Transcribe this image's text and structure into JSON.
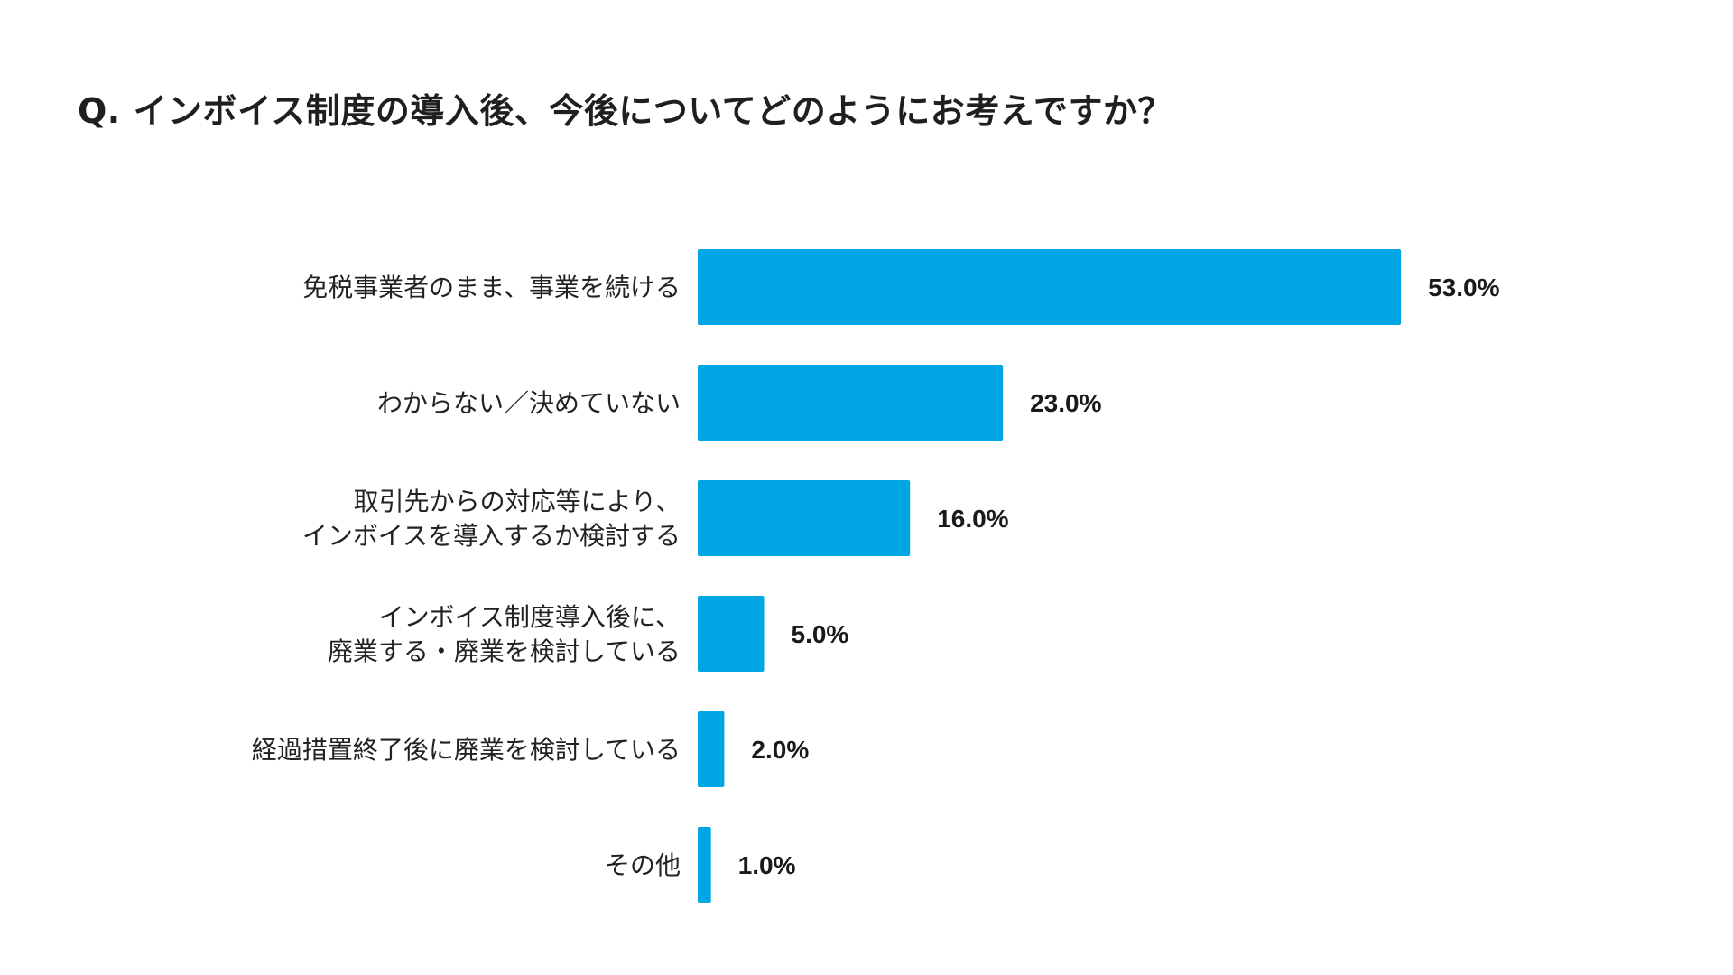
{
  "title": "Q. インボイス制度の導入後、今後についてどのようにお考えですか？",
  "chart_data": {
    "type": "bar",
    "orientation": "horizontal",
    "categories": [
      [
        "免税事業者のまま、事業を続ける"
      ],
      [
        "わからない／決めていない"
      ],
      [
        "取引先からの対応等により、",
        "インボイスを導入するか検討する"
      ],
      [
        "インボイス制度導入後に、",
        "廃業する・廃業を検討している"
      ],
      [
        "経過措置終了後に廃業を検討している"
      ],
      [
        "その他"
      ]
    ],
    "values": [
      53.0,
      23.0,
      16.0,
      5.0,
      2.0,
      1.0
    ],
    "value_labels": [
      "53.0%",
      "23.0%",
      "16.0%",
      "5.0%",
      "2.0%",
      "1.0%"
    ],
    "unit": "%",
    "xlim": [
      0,
      100
    ],
    "grid": false,
    "legend": "none",
    "bar_color": "#00a5e3"
  }
}
